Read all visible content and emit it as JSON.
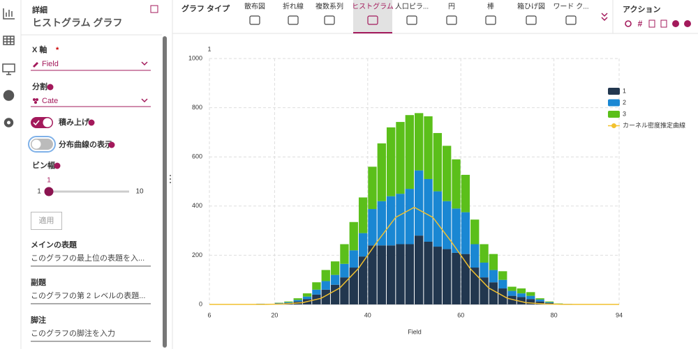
{
  "sidebar": {
    "header": "詳細",
    "title": "ヒストグラム グラフ",
    "x_axis": {
      "label": "X 軸",
      "required": "*",
      "value": "Field"
    },
    "split": {
      "label": "分割",
      "value": "Cate"
    },
    "stack_toggle": {
      "label": "積み上げ",
      "on": true
    },
    "curve_toggle": {
      "label": "分布曲線の表示",
      "on": false
    },
    "bin_width": {
      "label": "ビン幅",
      "value": 1,
      "min": 1,
      "max": 10
    },
    "apply": "適用",
    "main_title": {
      "label": "メインの表題",
      "placeholder": "このグラフの最上位の表題を入..."
    },
    "subtitle": {
      "label": "副題",
      "placeholder": "このグラフの第 2 レベルの表題..."
    },
    "footnote": {
      "label": "脚注",
      "placeholder": "このグラフの脚注を入力"
    }
  },
  "toolbar": {
    "label": "グラフ タイプ",
    "types": [
      "散布図",
      "折れ線",
      "複数系列",
      "ヒストグラム",
      "人口ピラ...",
      "円",
      "棒",
      "箱ひげ図",
      "ワード ク..."
    ],
    "selected": 3,
    "actions": "アクション"
  },
  "chart_data": {
    "type": "histogram",
    "stacked": true,
    "xlabel": "Field",
    "ylabel": "1",
    "bins": [
      6,
      8,
      10,
      12,
      14,
      16,
      18,
      20,
      22,
      24,
      26,
      28,
      30,
      32,
      34,
      36,
      38,
      40,
      42,
      44,
      46,
      48,
      50,
      52,
      54,
      56,
      58,
      60,
      62,
      64,
      66,
      68,
      70,
      72,
      74,
      76,
      78,
      80,
      82,
      84,
      86,
      88,
      90,
      92,
      94
    ],
    "series": [
      {
        "name": "1",
        "color": "#22374f",
        "values": [
          0,
          0,
          0,
          0,
          0,
          2,
          1,
          4,
          6,
          12,
          22,
          40,
          60,
          80,
          110,
          150,
          195,
          240,
          240,
          240,
          245,
          245,
          280,
          255,
          235,
          225,
          210,
          205,
          150,
          110,
          90,
          65,
          35,
          30,
          22,
          12,
          6,
          2,
          1,
          0,
          0,
          0,
          0,
          0
        ]
      },
      {
        "name": "2",
        "color": "#1a87d3",
        "values": [
          0,
          0,
          0,
          0,
          0,
          1,
          1,
          2,
          3,
          6,
          10,
          20,
          35,
          40,
          55,
          70,
          95,
          148,
          180,
          200,
          205,
          225,
          265,
          255,
          225,
          195,
          180,
          170,
          95,
          60,
          50,
          35,
          20,
          15,
          13,
          8,
          3,
          1,
          1,
          0,
          0,
          0,
          0,
          0
        ]
      },
      {
        "name": "3",
        "color": "#5bbf1a",
        "values": [
          0,
          0,
          0,
          0,
          0,
          0,
          0,
          1,
          3,
          7,
          13,
          30,
          45,
          55,
          80,
          115,
          145,
          172,
          235,
          280,
          292,
          300,
          233,
          255,
          237,
          225,
          200,
          152,
          100,
          75,
          65,
          35,
          17,
          20,
          15,
          5,
          3,
          1,
          0,
          0,
          0,
          0,
          0,
          0
        ]
      }
    ],
    "density": {
      "name": "カーネル密度推定曲線",
      "color": "#f2c12e",
      "x": [
        6,
        10,
        14,
        18,
        22,
        26,
        30,
        34,
        38,
        42,
        46,
        50,
        54,
        58,
        62,
        66,
        70,
        74,
        78,
        82,
        86,
        90,
        94
      ],
      "values": [
        0,
        0,
        0,
        0,
        2,
        7,
        25,
        67,
        146,
        254,
        354,
        395,
        354,
        254,
        146,
        67,
        25,
        7,
        2,
        0,
        0,
        0,
        0
      ]
    },
    "xlim": [
      6,
      94
    ],
    "xticks": [
      6,
      20,
      40,
      60,
      80,
      94
    ],
    "ylim": [
      0,
      1000
    ],
    "yticks": [
      0,
      200,
      400,
      600,
      800,
      1000
    ],
    "grid": true,
    "legend": "right"
  }
}
